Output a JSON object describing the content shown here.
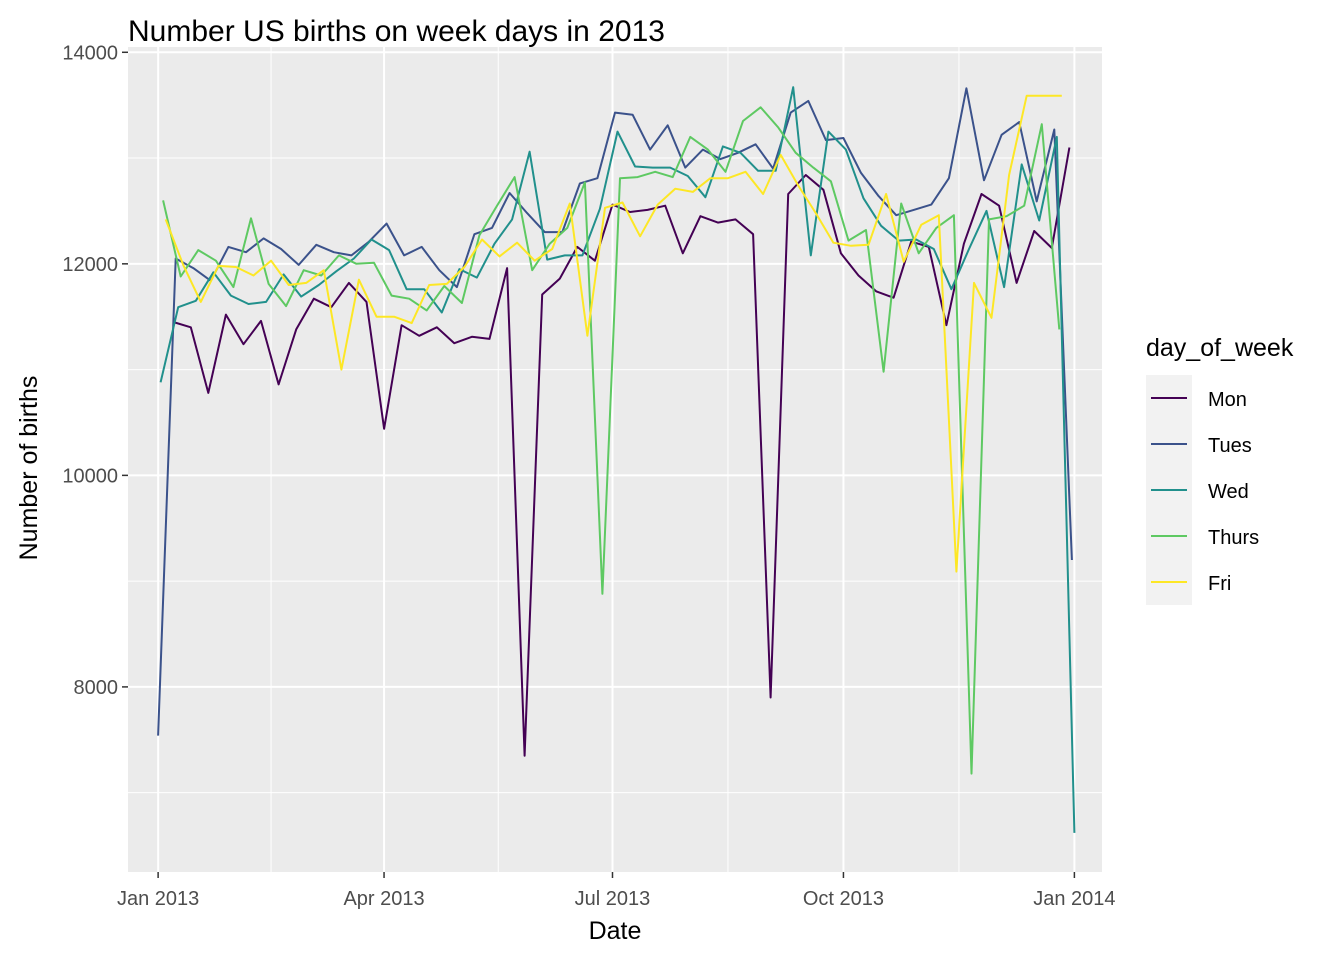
{
  "chart_data": {
    "type": "line",
    "title": "Number US births on week days in 2013",
    "xlabel": "Date",
    "ylabel": "Number of births",
    "x_ticks": [
      "Jan 2013",
      "Apr 2013",
      "Jul 2013",
      "Oct 2013",
      "Jan 2014"
    ],
    "y_ticks": [
      "8000",
      "10000",
      "12000",
      "14000"
    ],
    "xlim": [
      "2012-12-20",
      "2014-01-12"
    ],
    "ylim": [
      6250,
      14050
    ],
    "grid": true,
    "background": "#ebebeb",
    "legend": {
      "title": "day_of_week",
      "placement": "right"
    },
    "series": [
      {
        "name": "Mon",
        "color": "#440154",
        "x": [
          "2013-01-07",
          "2013-01-14",
          "2013-01-21",
          "2013-01-28",
          "2013-02-04",
          "2013-02-11",
          "2013-02-18",
          "2013-02-25",
          "2013-03-04",
          "2013-03-11",
          "2013-03-18",
          "2013-03-25",
          "2013-04-01",
          "2013-04-08",
          "2013-04-15",
          "2013-04-22",
          "2013-04-29",
          "2013-05-06",
          "2013-05-13",
          "2013-05-20",
          "2013-05-27",
          "2013-06-03",
          "2013-06-10",
          "2013-06-17",
          "2013-06-24",
          "2013-07-01",
          "2013-07-08",
          "2013-07-15",
          "2013-07-22",
          "2013-07-29",
          "2013-08-05",
          "2013-08-12",
          "2013-08-19",
          "2013-08-26",
          "2013-09-02",
          "2013-09-09",
          "2013-09-16",
          "2013-09-23",
          "2013-09-30",
          "2013-10-07",
          "2013-10-14",
          "2013-10-21",
          "2013-10-28",
          "2013-11-04",
          "2013-11-11",
          "2013-11-18",
          "2013-11-25",
          "2013-12-02",
          "2013-12-09",
          "2013-12-16",
          "2013-12-23",
          "2013-12-30"
        ],
        "values": [
          11450,
          11400,
          10780,
          11520,
          11240,
          11460,
          10860,
          11380,
          11670,
          11590,
          11820,
          11640,
          10440,
          11420,
          11320,
          11400,
          11250,
          11310,
          11290,
          11960,
          7350,
          11710,
          11860,
          12160,
          12030,
          12560,
          12490,
          12510,
          12550,
          12100,
          12450,
          12390,
          12420,
          12280,
          7900,
          12660,
          12840,
          12700,
          12100,
          11890,
          11740,
          11680,
          12210,
          12160,
          11420,
          12190,
          12660,
          12550,
          11820,
          12310,
          12150,
          13100
        ]
      },
      {
        "name": "Tues",
        "color": "#3b528b",
        "x": [
          "2013-01-01",
          "2013-01-08",
          "2013-01-15",
          "2013-01-22",
          "2013-01-29",
          "2013-02-05",
          "2013-02-12",
          "2013-02-19",
          "2013-02-26",
          "2013-03-05",
          "2013-03-12",
          "2013-03-19",
          "2013-03-26",
          "2013-04-02",
          "2013-04-09",
          "2013-04-16",
          "2013-04-23",
          "2013-04-30",
          "2013-05-07",
          "2013-05-14",
          "2013-05-21",
          "2013-05-28",
          "2013-06-04",
          "2013-06-11",
          "2013-06-18",
          "2013-06-25",
          "2013-07-02",
          "2013-07-09",
          "2013-07-16",
          "2013-07-23",
          "2013-07-30",
          "2013-08-06",
          "2013-08-13",
          "2013-08-20",
          "2013-08-27",
          "2013-09-03",
          "2013-09-10",
          "2013-09-17",
          "2013-09-24",
          "2013-10-01",
          "2013-10-08",
          "2013-10-15",
          "2013-10-22",
          "2013-10-29",
          "2013-11-05",
          "2013-11-12",
          "2013-11-19",
          "2013-11-26",
          "2013-12-03",
          "2013-12-10",
          "2013-12-17",
          "2013-12-24",
          "2013-12-31"
        ],
        "values": [
          7540,
          12050,
          11960,
          11840,
          12160,
          12110,
          12240,
          12140,
          11990,
          12180,
          12110,
          12080,
          12210,
          12380,
          12080,
          12160,
          11940,
          11780,
          12280,
          12340,
          12670,
          12480,
          12300,
          12300,
          12760,
          12810,
          13430,
          13410,
          13080,
          13310,
          12910,
          13080,
          12990,
          13050,
          13130,
          12900,
          13430,
          13540,
          13170,
          13190,
          12860,
          12640,
          12460,
          12510,
          12560,
          12810,
          13660,
          12790,
          13220,
          13340,
          12590,
          13270,
          9200
        ]
      },
      {
        "name": "Wed",
        "color": "#21908c",
        "x": [
          "2013-01-02",
          "2013-01-09",
          "2013-01-16",
          "2013-01-23",
          "2013-01-30",
          "2013-02-06",
          "2013-02-13",
          "2013-02-20",
          "2013-02-27",
          "2013-03-06",
          "2013-03-13",
          "2013-03-20",
          "2013-03-27",
          "2013-04-03",
          "2013-04-10",
          "2013-04-17",
          "2013-04-24",
          "2013-05-01",
          "2013-05-08",
          "2013-05-15",
          "2013-05-22",
          "2013-05-29",
          "2013-06-05",
          "2013-06-12",
          "2013-06-19",
          "2013-06-26",
          "2013-07-03",
          "2013-07-10",
          "2013-07-17",
          "2013-07-24",
          "2013-07-31",
          "2013-08-07",
          "2013-08-14",
          "2013-08-21",
          "2013-08-28",
          "2013-09-04",
          "2013-09-11",
          "2013-09-18",
          "2013-09-25",
          "2013-10-02",
          "2013-10-09",
          "2013-10-16",
          "2013-10-23",
          "2013-10-30",
          "2013-11-06",
          "2013-11-13",
          "2013-11-20",
          "2013-11-27",
          "2013-12-04",
          "2013-12-11",
          "2013-12-18",
          "2013-12-25",
          "2014-01-01"
        ],
        "values": [
          10880,
          11590,
          11650,
          11920,
          11700,
          11620,
          11640,
          11900,
          11690,
          11800,
          11930,
          12050,
          12230,
          12130,
          11760,
          11760,
          11540,
          11950,
          11870,
          12190,
          12420,
          13060,
          12040,
          12080,
          12080,
          12520,
          13250,
          12920,
          12910,
          12910,
          12830,
          12630,
          13110,
          13050,
          12880,
          12880,
          13670,
          12080,
          13250,
          13080,
          12620,
          12360,
          12220,
          12230,
          12140,
          11760,
          12140,
          12500,
          11780,
          12940,
          12410,
          13200,
          6620
        ]
      },
      {
        "name": "Thurs",
        "color": "#5ec962",
        "x": [
          "2013-01-03",
          "2013-01-10",
          "2013-01-17",
          "2013-01-24",
          "2013-01-31",
          "2013-02-07",
          "2013-02-14",
          "2013-02-21",
          "2013-02-28",
          "2013-03-07",
          "2013-03-14",
          "2013-03-21",
          "2013-03-28",
          "2013-04-04",
          "2013-04-11",
          "2013-04-18",
          "2013-04-25",
          "2013-05-02",
          "2013-05-09",
          "2013-05-16",
          "2013-05-23",
          "2013-05-30",
          "2013-06-06",
          "2013-06-13",
          "2013-06-20",
          "2013-06-27",
          "2013-07-04",
          "2013-07-11",
          "2013-07-18",
          "2013-07-25",
          "2013-08-01",
          "2013-08-08",
          "2013-08-15",
          "2013-08-22",
          "2013-08-29",
          "2013-09-05",
          "2013-09-12",
          "2013-09-19",
          "2013-09-26",
          "2013-10-03",
          "2013-10-10",
          "2013-10-17",
          "2013-10-24",
          "2013-10-31",
          "2013-11-07",
          "2013-11-14",
          "2013-11-21",
          "2013-11-28",
          "2013-12-05",
          "2013-12-12",
          "2013-12-19",
          "2013-12-26"
        ],
        "values": [
          12600,
          11880,
          12130,
          12030,
          11780,
          12430,
          11810,
          11600,
          11940,
          11890,
          12080,
          12000,
          12010,
          11700,
          11670,
          11560,
          11790,
          11630,
          12270,
          12550,
          12820,
          11940,
          12190,
          12340,
          12770,
          8880,
          12810,
          12820,
          12870,
          12820,
          13200,
          13080,
          12870,
          13350,
          13480,
          13290,
          13050,
          12910,
          12780,
          12220,
          12320,
          10980,
          12570,
          12100,
          12340,
          12460,
          7180,
          12420,
          12450,
          12550,
          13320,
          11380
        ]
      },
      {
        "name": "Fri",
        "color": "#fde725",
        "x": [
          "2013-01-04",
          "2013-01-11",
          "2013-01-18",
          "2013-01-25",
          "2013-02-01",
          "2013-02-08",
          "2013-02-15",
          "2013-02-22",
          "2013-03-01",
          "2013-03-08",
          "2013-03-15",
          "2013-03-22",
          "2013-03-29",
          "2013-04-05",
          "2013-04-12",
          "2013-04-19",
          "2013-04-26",
          "2013-05-03",
          "2013-05-10",
          "2013-05-17",
          "2013-05-24",
          "2013-05-31",
          "2013-06-07",
          "2013-06-14",
          "2013-06-21",
          "2013-06-28",
          "2013-07-05",
          "2013-07-12",
          "2013-07-19",
          "2013-07-26",
          "2013-08-02",
          "2013-08-09",
          "2013-08-16",
          "2013-08-23",
          "2013-08-30",
          "2013-09-06",
          "2013-09-13",
          "2013-09-20",
          "2013-09-27",
          "2013-10-04",
          "2013-10-11",
          "2013-10-18",
          "2013-10-25",
          "2013-11-01",
          "2013-11-08",
          "2013-11-15",
          "2013-11-22",
          "2013-11-29",
          "2013-12-06",
          "2013-12-13",
          "2013-12-20",
          "2013-12-27"
        ],
        "values": [
          12420,
          11990,
          11640,
          11980,
          11970,
          11890,
          12030,
          11800,
          11820,
          11940,
          11000,
          11850,
          11500,
          11500,
          11440,
          11800,
          11810,
          11970,
          12230,
          12070,
          12200,
          12030,
          12140,
          12570,
          11320,
          12530,
          12580,
          12260,
          12560,
          12710,
          12680,
          12810,
          12810,
          12870,
          12660,
          13030,
          12740,
          12480,
          12200,
          12170,
          12180,
          12660,
          12020,
          12370,
          12460,
          9090,
          11820,
          11490,
          12840,
          13590,
          13590,
          13590
        ]
      }
    ]
  }
}
